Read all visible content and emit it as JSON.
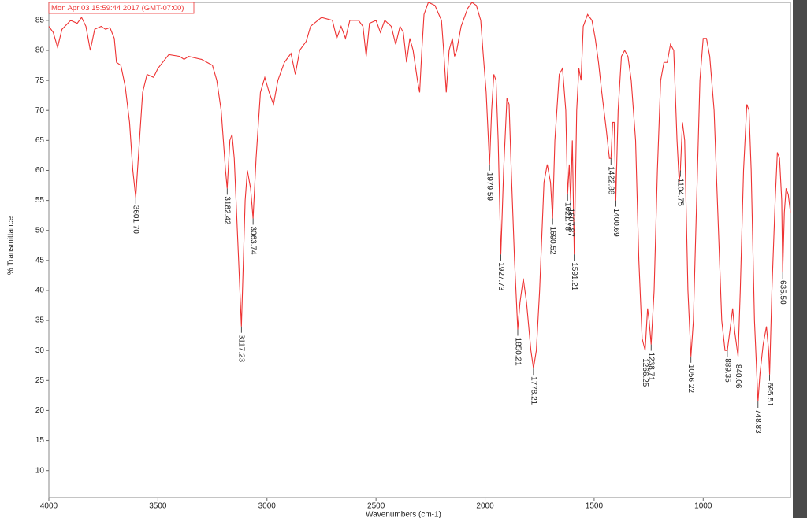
{
  "chart_data": {
    "type": "line",
    "title": "Mon Apr 03 15:59:44 2017 (GMT-07:00)",
    "x_label": "Wavenumbers (cm-1)",
    "y_label": "% Transmittance",
    "color": "#ee3333",
    "xlim": [
      4000,
      600
    ],
    "ylim": [
      5.5,
      88
    ],
    "xticks": [
      4000,
      3500,
      3000,
      2500,
      2000,
      1500,
      1000
    ],
    "yticks": [
      10,
      15,
      20,
      25,
      30,
      35,
      40,
      45,
      50,
      55,
      60,
      65,
      70,
      75,
      80,
      85
    ],
    "x": [
      4000,
      3980,
      3960,
      3940,
      3900,
      3870,
      3850,
      3830,
      3810,
      3790,
      3760,
      3740,
      3720,
      3700,
      3690,
      3670,
      3650,
      3630,
      3615,
      3601.7,
      3590,
      3570,
      3550,
      3520,
      3500,
      3450,
      3400,
      3380,
      3360,
      3300,
      3250,
      3230,
      3210,
      3190,
      3182.42,
      3170,
      3160,
      3150,
      3130,
      3117.23,
      3100,
      3090,
      3075,
      3063.74,
      3050,
      3030,
      3010,
      2990,
      2970,
      2950,
      2920,
      2900,
      2890,
      2870,
      2850,
      2820,
      2800,
      2750,
      2700,
      2680,
      2660,
      2640,
      2620,
      2580,
      2560,
      2545,
      2530,
      2500,
      2480,
      2460,
      2430,
      2410,
      2390,
      2375,
      2360,
      2345,
      2330,
      2310,
      2300,
      2290,
      2280,
      2260,
      2230,
      2200,
      2190,
      2178,
      2165,
      2150,
      2140,
      2130,
      2110,
      2080,
      2060,
      2040,
      2020,
      2010,
      1995,
      1979.59,
      1970,
      1960,
      1950,
      1940,
      1927.73,
      1915,
      1900,
      1890,
      1880,
      1865,
      1850.21,
      1840,
      1825,
      1810,
      1790,
      1778.21,
      1765,
      1750,
      1730,
      1715,
      1700,
      1690.52,
      1680,
      1660,
      1645,
      1630,
      1621.78,
      1614,
      1607.87,
      1600,
      1591.21,
      1580,
      1570,
      1560,
      1550,
      1530,
      1510,
      1495,
      1480,
      1465,
      1445,
      1430,
      1422.88,
      1415,
      1408,
      1400.69,
      1390,
      1375,
      1360,
      1345,
      1330,
      1310,
      1295,
      1280,
      1266.25,
      1255,
      1248,
      1238.71,
      1225,
      1210,
      1195,
      1180,
      1165,
      1150,
      1135,
      1120,
      1110,
      1104.75,
      1095,
      1085,
      1070,
      1056.22,
      1045,
      1030,
      1015,
      1000,
      985,
      970,
      950,
      930,
      915,
      900,
      889.35,
      875,
      865,
      855,
      840.06,
      830,
      815,
      800,
      790,
      780,
      765,
      748.83,
      740,
      725,
      710,
      700,
      695.51,
      685,
      670,
      660,
      650,
      640,
      635.5,
      628,
      620,
      610,
      600
    ],
    "values": [
      84,
      83,
      80.5,
      83.5,
      85,
      84.5,
      85.5,
      84,
      80,
      83.5,
      84,
      83.5,
      83.8,
      82,
      78,
      77.5,
      74,
      68,
      60,
      55.5,
      62,
      73,
      76,
      75.5,
      77,
      79.3,
      79,
      78.5,
      79,
      78.5,
      77.5,
      75,
      70,
      60,
      57,
      65,
      66,
      62,
      45,
      34,
      55,
      60,
      57,
      52,
      62,
      73,
      75.5,
      73,
      71,
      75,
      78,
      79,
      79.5,
      76,
      80,
      81.5,
      84,
      85.5,
      85,
      82,
      84,
      82,
      85,
      85,
      84,
      79,
      84.5,
      85,
      83,
      85,
      84,
      81,
      84,
      83,
      78,
      82,
      80,
      75,
      73,
      80,
      86,
      88,
      87.5,
      85,
      80,
      73,
      80,
      82,
      79,
      80,
      84,
      87,
      88,
      87.5,
      85,
      80,
      73,
      61,
      70,
      76,
      75,
      65,
      46,
      60,
      72,
      71,
      60,
      45,
      33.5,
      38,
      42,
      38,
      30,
      27,
      30,
      40,
      58,
      61,
      58,
      52,
      65,
      76,
      77,
      70,
      56,
      61,
      55,
      65,
      46,
      70,
      77,
      75,
      84,
      86,
      85,
      82,
      78,
      73,
      67,
      62,
      62,
      68,
      68,
      55,
      70,
      79,
      80,
      79,
      75,
      65,
      45,
      32,
      30,
      37,
      35,
      31,
      40,
      60,
      75,
      78,
      78,
      81,
      80,
      65,
      58,
      60,
      68,
      65,
      40,
      29,
      35,
      55,
      75,
      82,
      82,
      79,
      70,
      50,
      35,
      30,
      30,
      34,
      37,
      33,
      29,
      40,
      60,
      71,
      70,
      60,
      35,
      21.5,
      26,
      31,
      34,
      30,
      26,
      40,
      55,
      63,
      62,
      55,
      43,
      53,
      57,
      56,
      53
    ],
    "annotations": [
      {
        "value": 3601.7,
        "label": "3601.70"
      },
      {
        "value": 3182.42,
        "label": "3182.42"
      },
      {
        "value": 3117.23,
        "label": "3117.23"
      },
      {
        "value": 3063.74,
        "label": "3063.74"
      },
      {
        "value": 1979.59,
        "label": "1979.59"
      },
      {
        "value": 1927.73,
        "label": "1927.73"
      },
      {
        "value": 1850.21,
        "label": "1850.21"
      },
      {
        "value": 1778.21,
        "label": "1778.21"
      },
      {
        "value": 1690.52,
        "label": "1690.52"
      },
      {
        "value": 1621.78,
        "label": "1621.78"
      },
      {
        "value": 1607.87,
        "label": "1607.87"
      },
      {
        "value": 1591.21,
        "label": "1591.21"
      },
      {
        "value": 1422.88,
        "label": "1422.88"
      },
      {
        "value": 1400.69,
        "label": "1400.69"
      },
      {
        "value": 1266.25,
        "label": "1266.25"
      },
      {
        "value": 1238.71,
        "label": "1238.71"
      },
      {
        "value": 1104.75,
        "label": "1104.75"
      },
      {
        "value": 1056.22,
        "label": "1056.22"
      },
      {
        "value": 889.35,
        "label": "889.35"
      },
      {
        "value": 840.06,
        "label": "840.06"
      },
      {
        "value": 748.83,
        "label": "748.83"
      },
      {
        "value": 695.51,
        "label": "695.51"
      },
      {
        "value": 635.5,
        "label": "635.50"
      }
    ]
  }
}
